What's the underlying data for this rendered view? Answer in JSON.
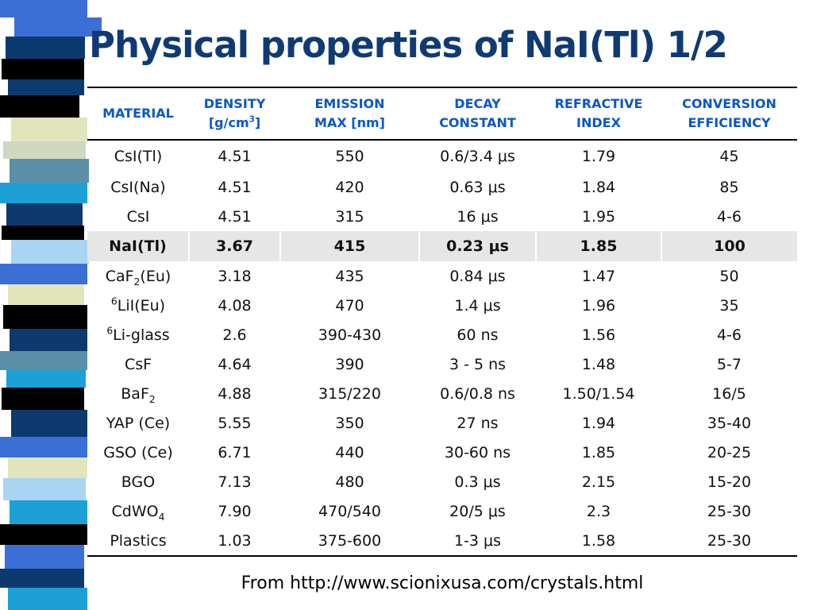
{
  "slide": {
    "title": "Physical properties of NaI(Tl) 1/2",
    "source_note": "From http://www.scionixusa.com/crystals.html"
  },
  "colors": {
    "title": "#0f3a73",
    "header_text": "#0a57c4",
    "highlight_row": "#e6e6e6",
    "stripe": [
      "#0d3a6e",
      "#3b6fd6",
      "#e2e4bc",
      "#000000",
      "#1ca0d6",
      "#5a8fa8",
      "#a9d4f2",
      "#d0d8c0"
    ]
  },
  "table": {
    "headers": [
      {
        "line1": "MATERIAL",
        "line2": ""
      },
      {
        "line1": "DENSITY",
        "line2": "[g/cm",
        "sup": "3",
        "line2_end": "]"
      },
      {
        "line1": "EMISSION",
        "line2": "MAX [nm]"
      },
      {
        "line1": "DECAY",
        "line2": "CONSTANT"
      },
      {
        "line1": "REFRACTIVE",
        "line2": "INDEX"
      },
      {
        "line1": "CONVERSION",
        "line2": "EFFICIENCY"
      }
    ],
    "highlight_row_index": 3,
    "rows": [
      {
        "material": {
          "pre_sup": "",
          "base": "CsI(Tl)",
          "sub": "",
          "suffix": ""
        },
        "cells": [
          "4.51",
          "550",
          "0.6/3.4 μs",
          "1.79",
          "45"
        ]
      },
      {
        "material": {
          "pre_sup": "",
          "base": "CsI(Na)",
          "sub": "",
          "suffix": ""
        },
        "cells": [
          "4.51",
          "420",
          "0.63 μs",
          "1.84",
          "85"
        ]
      },
      {
        "material": {
          "pre_sup": "",
          "base": "CsI",
          "sub": "",
          "suffix": ""
        },
        "cells": [
          "4.51",
          "315",
          "16 μs",
          "1.95",
          "4-6"
        ]
      },
      {
        "material": {
          "pre_sup": "",
          "base": "NaI(Tl)",
          "sub": "",
          "suffix": ""
        },
        "cells": [
          "3.67",
          "415",
          "0.23 μs",
          "1.85",
          "100"
        ]
      },
      {
        "material": {
          "pre_sup": "",
          "base": "CaF",
          "sub": "2",
          "suffix": "(Eu)"
        },
        "cells": [
          "3.18",
          "435",
          "0.84 μs",
          "1.47",
          "50"
        ]
      },
      {
        "material": {
          "pre_sup": "6",
          "base": "LiI(Eu)",
          "sub": "",
          "suffix": ""
        },
        "cells": [
          "4.08",
          "470",
          "1.4 μs",
          "1.96",
          "35"
        ]
      },
      {
        "material": {
          "pre_sup": "6",
          "base": "Li-glass",
          "sub": "",
          "suffix": ""
        },
        "cells": [
          "2.6",
          "390-430",
          "60 ns",
          "1.56",
          "4-6"
        ]
      },
      {
        "material": {
          "pre_sup": "",
          "base": "CsF",
          "sub": "",
          "suffix": ""
        },
        "cells": [
          "4.64",
          "390",
          "3 - 5 ns",
          "1.48",
          "5-7"
        ]
      },
      {
        "material": {
          "pre_sup": "",
          "base": "BaF",
          "sub": "2",
          "suffix": ""
        },
        "cells": [
          "4.88",
          "315/220",
          "0.6/0.8 ns",
          "1.50/1.54",
          "16/5"
        ]
      },
      {
        "material": {
          "pre_sup": "",
          "base": "YAP (Ce)",
          "sub": "",
          "suffix": ""
        },
        "cells": [
          "5.55",
          "350",
          "27 ns",
          "1.94",
          "35-40"
        ]
      },
      {
        "material": {
          "pre_sup": "",
          "base": "GSO (Ce)",
          "sub": "",
          "suffix": ""
        },
        "cells": [
          "6.71",
          "440",
          "30-60 ns",
          "1.85",
          "20-25"
        ]
      },
      {
        "material": {
          "pre_sup": "",
          "base": "BGO",
          "sub": "",
          "suffix": ""
        },
        "cells": [
          "7.13",
          "480",
          "0.3 μs",
          "2.15",
          "15-20"
        ]
      },
      {
        "material": {
          "pre_sup": "",
          "base": "CdWO",
          "sub": "4",
          "suffix": ""
        },
        "cells": [
          "7.90",
          "470/540",
          "20/5 μs",
          "2.3",
          "25-30"
        ]
      },
      {
        "material": {
          "pre_sup": "",
          "base": "Plastics",
          "sub": "",
          "suffix": ""
        },
        "cells": [
          "1.03",
          "375-600",
          "1-3 μs",
          "1.58",
          "25-30"
        ]
      }
    ]
  }
}
